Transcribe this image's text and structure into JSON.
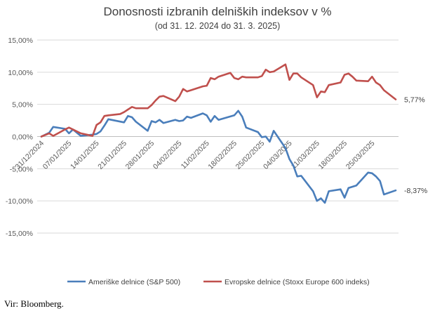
{
  "chart_data": {
    "type": "line",
    "title": "Donosnosti izbranih delniških indeksov v %",
    "subtitle": "(od 31. 12. 2024 do 31. 3. 2025)",
    "xlabel": "",
    "ylabel": "",
    "ylim": [
      -15,
      15
    ],
    "y_ticks": [
      15,
      10,
      5,
      0,
      -5,
      -10,
      -15
    ],
    "y_tick_labels": [
      "15,00%",
      "10,00%",
      "5,00%",
      "0,00%",
      "-5,00%",
      "-10,00%",
      "-15,00%"
    ],
    "x_range": [
      "31/12/2024",
      "31/03/2025"
    ],
    "x_tick_labels": [
      "31/12/2024",
      "07/01/2025",
      "14/01/2025",
      "21/01/2025",
      "28/01/2025",
      "04/02/2025",
      "11/02/2025",
      "18/02/2025",
      "25/02/2025",
      "04/03/2025",
      "11/03/2025",
      "18/03/2025",
      "25/03/2025"
    ],
    "grid": "horizontal",
    "legend_position": "bottom",
    "series": [
      {
        "name": "Ameriške delnice (S&P 500)",
        "color": "#4a7ebb",
        "end_label": "-8,37%",
        "points": [
          [
            "31/12/2024",
            0
          ],
          [
            "02/01/2025",
            0.6
          ],
          [
            "03/01/2025",
            1.5
          ],
          [
            "06/01/2025",
            1.2
          ],
          [
            "07/01/2025",
            0.5
          ],
          [
            "08/01/2025",
            1.1
          ],
          [
            "10/01/2025",
            0.1
          ],
          [
            "13/01/2025",
            0.3
          ],
          [
            "14/01/2025",
            0.4
          ],
          [
            "15/01/2025",
            0.8
          ],
          [
            "16/01/2025",
            1.7
          ],
          [
            "17/01/2025",
            2.7
          ],
          [
            "21/01/2025",
            2.2
          ],
          [
            "22/01/2025",
            3.2
          ],
          [
            "23/01/2025",
            3.0
          ],
          [
            "24/01/2025",
            2.3
          ],
          [
            "27/01/2025",
            0.9
          ],
          [
            "28/01/2025",
            2.4
          ],
          [
            "29/01/2025",
            2.2
          ],
          [
            "30/01/2025",
            2.6
          ],
          [
            "31/01/2025",
            2.1
          ],
          [
            "03/02/2025",
            2.6
          ],
          [
            "04/02/2025",
            2.4
          ],
          [
            "05/02/2025",
            2.5
          ],
          [
            "06/02/2025",
            3.1
          ],
          [
            "07/02/2025",
            2.9
          ],
          [
            "10/02/2025",
            3.6
          ],
          [
            "11/02/2025",
            3.3
          ],
          [
            "12/02/2025",
            2.3
          ],
          [
            "13/02/2025",
            3.2
          ],
          [
            "14/02/2025",
            2.6
          ],
          [
            "18/02/2025",
            3.3
          ],
          [
            "19/02/2025",
            4.0
          ],
          [
            "20/02/2025",
            3.1
          ],
          [
            "21/02/2025",
            1.4
          ],
          [
            "24/02/2025",
            0.7
          ],
          [
            "25/02/2025",
            -0.1
          ],
          [
            "26/02/2025",
            0.0
          ],
          [
            "27/02/2025",
            -0.8
          ],
          [
            "28/02/2025",
            0.9
          ],
          [
            "03/03/2025",
            -1.8
          ],
          [
            "04/03/2025",
            -3.5
          ],
          [
            "05/03/2025",
            -4.5
          ],
          [
            "06/03/2025",
            -6.2
          ],
          [
            "07/03/2025",
            -6.1
          ],
          [
            "10/03/2025",
            -8.5
          ],
          [
            "11/03/2025",
            -10.0
          ],
          [
            "12/03/2025",
            -9.6
          ],
          [
            "13/03/2025",
            -10.3
          ],
          [
            "14/03/2025",
            -8.5
          ],
          [
            "17/03/2025",
            -8.2
          ],
          [
            "18/03/2025",
            -9.5
          ],
          [
            "19/03/2025",
            -8.0
          ],
          [
            "20/03/2025",
            -7.8
          ],
          [
            "21/03/2025",
            -7.6
          ],
          [
            "24/03/2025",
            -5.6
          ],
          [
            "25/03/2025",
            -5.7
          ],
          [
            "26/03/2025",
            -6.2
          ],
          [
            "27/03/2025",
            -6.9
          ],
          [
            "28/03/2025",
            -9.0
          ],
          [
            "31/03/2025",
            -8.37
          ]
        ]
      },
      {
        "name": "Evropske delnice (Stoxx Europe 600 indeks)",
        "color": "#c0504d",
        "end_label": "5,77%",
        "points": [
          [
            "31/12/2024",
            0
          ],
          [
            "02/01/2025",
            0.5
          ],
          [
            "03/01/2025",
            0.1
          ],
          [
            "06/01/2025",
            1.1
          ],
          [
            "07/01/2025",
            1.4
          ],
          [
            "08/01/2025",
            1.1
          ],
          [
            "10/01/2025",
            0.5
          ],
          [
            "13/01/2025",
            0.1
          ],
          [
            "14/01/2025",
            1.8
          ],
          [
            "15/01/2025",
            2.2
          ],
          [
            "16/01/2025",
            3.2
          ],
          [
            "17/01/2025",
            3.3
          ],
          [
            "20/01/2025",
            3.5
          ],
          [
            "21/01/2025",
            3.8
          ],
          [
            "22/01/2025",
            4.2
          ],
          [
            "23/01/2025",
            4.6
          ],
          [
            "24/01/2025",
            4.4
          ],
          [
            "27/01/2025",
            4.4
          ],
          [
            "28/01/2025",
            4.9
          ],
          [
            "29/01/2025",
            5.6
          ],
          [
            "30/01/2025",
            6.2
          ],
          [
            "31/01/2025",
            6.3
          ],
          [
            "03/02/2025",
            5.5
          ],
          [
            "04/02/2025",
            6.2
          ],
          [
            "05/02/2025",
            7.4
          ],
          [
            "06/02/2025",
            7.0
          ],
          [
            "07/02/2025",
            7.2
          ],
          [
            "10/02/2025",
            7.8
          ],
          [
            "11/02/2025",
            7.9
          ],
          [
            "12/02/2025",
            9.1
          ],
          [
            "13/02/2025",
            8.9
          ],
          [
            "14/02/2025",
            9.3
          ],
          [
            "17/02/2025",
            9.9
          ],
          [
            "18/02/2025",
            9.1
          ],
          [
            "19/02/2025",
            8.9
          ],
          [
            "20/02/2025",
            9.3
          ],
          [
            "21/02/2025",
            9.2
          ],
          [
            "24/02/2025",
            9.2
          ],
          [
            "25/02/2025",
            9.4
          ],
          [
            "26/02/2025",
            10.4
          ],
          [
            "27/02/2025",
            10.0
          ],
          [
            "28/02/2025",
            10.1
          ],
          [
            "03/03/2025",
            11.2
          ],
          [
            "04/03/2025",
            8.8
          ],
          [
            "05/03/2025",
            9.8
          ],
          [
            "06/03/2025",
            9.8
          ],
          [
            "07/03/2025",
            9.2
          ],
          [
            "10/03/2025",
            8.0
          ],
          [
            "11/03/2025",
            6.1
          ],
          [
            "12/03/2025",
            7.0
          ],
          [
            "13/03/2025",
            6.9
          ],
          [
            "14/03/2025",
            8.0
          ],
          [
            "17/03/2025",
            8.4
          ],
          [
            "18/03/2025",
            9.6
          ],
          [
            "19/03/2025",
            9.8
          ],
          [
            "20/03/2025",
            9.3
          ],
          [
            "21/03/2025",
            8.7
          ],
          [
            "24/03/2025",
            8.6
          ],
          [
            "25/03/2025",
            9.3
          ],
          [
            "26/03/2025",
            8.4
          ],
          [
            "27/03/2025",
            8.0
          ],
          [
            "28/03/2025",
            7.2
          ],
          [
            "31/03/2025",
            5.77
          ]
        ]
      }
    ]
  },
  "source_note": "Vir: Bloomberg."
}
